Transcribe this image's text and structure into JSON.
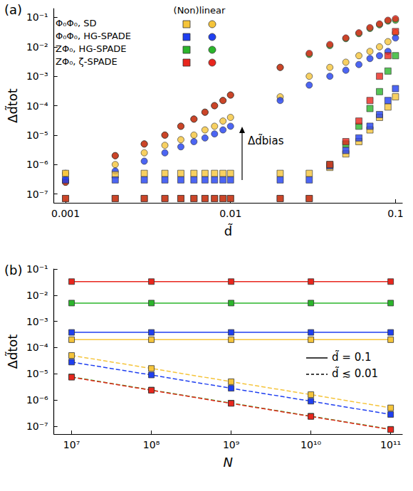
{
  "chart_data": [
    {
      "type": "scatter",
      "panel_label": "(a)",
      "x_label": "d̃",
      "y_label": "Δd̃tot",
      "log": true,
      "grid": false,
      "legend": "upper left",
      "legend_title": "(Non)linear",
      "annotation": "Δd̃bias",
      "xlim": [
        0.00085,
        0.11
      ],
      "ylim": [
        5e-08,
        0.2
      ],
      "xticks": [
        0.001,
        0.01,
        0.1
      ],
      "yticks": [
        {
          "value": 1e-07,
          "label": "10⁻⁷"
        },
        {
          "value": 1e-06,
          "label": "10⁻⁶"
        },
        {
          "value": 1e-05,
          "label": "10⁻⁵"
        },
        {
          "value": 0.0001,
          "label": "10⁻⁴"
        },
        {
          "value": 0.001,
          "label": "10⁻³"
        },
        {
          "value": 0.01,
          "label": "10⁻²"
        },
        {
          "value": 0.1,
          "label": "10⁻¹"
        }
      ],
      "x": [
        0.001,
        0.002,
        0.003,
        0.004,
        0.005,
        0.006,
        0.007,
        0.008,
        0.009,
        0.01,
        0.02,
        0.03,
        0.04,
        0.05,
        0.06,
        0.07,
        0.08,
        0.09,
        0.1
      ],
      "series": [
        {
          "name": "Φ₀Φ₀, SD",
          "marker": "circle",
          "color": "#f5c43a",
          "values": [
            5e-07,
            1e-06,
            2.5e-06,
            4.5e-06,
            7e-06,
            1e-05,
            1.5e-05,
            2e-05,
            3e-05,
            4e-05,
            0.0002,
            0.001,
            0.002,
            0.003,
            0.005,
            0.007,
            0.01,
            0.015,
            0.03
          ]
        },
        {
          "name": "Φ₀Φ₀, HG-SPADE",
          "marker": "circle",
          "color": "#1f3ff0",
          "values": [
            3e-07,
            6e-07,
            1.3e-06,
            2.5e-06,
            4e-06,
            6e-06,
            8e-06,
            1.1e-05,
            1.5e-05,
            2e-05,
            0.00015,
            0.0005,
            0.001,
            0.0016,
            0.0025,
            0.004,
            0.005,
            0.007,
            0.02
          ]
        },
        {
          "name": "ZΦ₀, HG-SPADE",
          "marker": "circle",
          "color": "#2bb52b",
          "values": [
            2.5e-07,
            2e-06,
            5e-06,
            1e-05,
            2e-05,
            3.5e-05,
            6e-05,
            0.0001,
            0.00015,
            0.00023,
            0.002,
            0.0055,
            0.011,
            0.019,
            0.028,
            0.042,
            0.056,
            0.075,
            0.08
          ]
        },
        {
          "name": "ZΦ₀, ζ-SPADE",
          "marker": "circle",
          "color": "#e8261d",
          "values": [
            2.5e-07,
            2e-06,
            5e-06,
            1e-05,
            2e-05,
            3.5e-05,
            6e-05,
            0.0001,
            0.00015,
            0.00023,
            0.002,
            0.006,
            0.012,
            0.02,
            0.03,
            0.045,
            0.06,
            0.08,
            0.09
          ]
        },
        {
          "name": "Φ₀Φ₀, SD",
          "marker": "square",
          "color": "#f5c43a",
          "values": [
            5e-07,
            4.5e-07,
            5e-07,
            5e-07,
            5e-07,
            5e-07,
            5e-07,
            5e-07,
            5e-07,
            5e-07,
            5e-07,
            5e-07,
            8e-07,
            2.3e-06,
            6e-06,
            1.5e-05,
            4e-05,
            9e-05,
            0.0002
          ]
        },
        {
          "name": "Φ₀Φ₀, HG-SPADE",
          "marker": "square",
          "color": "#1f3ff0",
          "values": [
            3e-07,
            3e-07,
            3e-07,
            3e-07,
            3e-07,
            3e-07,
            3e-07,
            3e-07,
            3e-07,
            3e-07,
            3e-07,
            3e-07,
            9e-07,
            3e-06,
            8e-06,
            2e-05,
            5e-05,
            0.00015,
            0.00038
          ]
        },
        {
          "name": "ZΦ₀, HG-SPADE",
          "marker": "square",
          "color": "#2bb52b",
          "values": [
            7e-08,
            7e-08,
            7e-08,
            7e-08,
            7e-08,
            7e-08,
            7e-08,
            7e-08,
            7e-08,
            7e-08,
            7e-08,
            7e-08,
            1e-06,
            5e-06,
            2e-05,
            8e-05,
            0.0003,
            0.0015,
            0.005
          ]
        },
        {
          "name": "ZΦ₀, ζ-SPADE",
          "marker": "square",
          "color": "#e8261d",
          "values": [
            7e-08,
            7e-08,
            7e-08,
            7e-08,
            7e-08,
            7e-08,
            7e-08,
            7e-08,
            7e-08,
            7e-08,
            7e-08,
            7e-08,
            1e-06,
            6e-06,
            3e-05,
            0.00015,
            0.001,
            0.005,
            0.033
          ]
        }
      ]
    },
    {
      "type": "line",
      "panel_label": "(b)",
      "x_label": "N",
      "y_label": "Δd̃tot",
      "log": true,
      "grid": false,
      "legend": "right",
      "marker": "square",
      "xlim": [
        6000000.0,
        140000000000.0
      ],
      "ylim": [
        5e-08,
        0.1
      ],
      "xticks": [
        {
          "value": 10000000.0,
          "label": "10⁷"
        },
        {
          "value": 100000000.0,
          "label": "10⁸"
        },
        {
          "value": 1000000000.0,
          "label": "10⁹"
        },
        {
          "value": 10000000000.0,
          "label": "10¹⁰"
        },
        {
          "value": 100000000000.0,
          "label": "10¹¹"
        }
      ],
      "yticks": [
        {
          "value": 1e-07,
          "label": "10⁻⁷"
        },
        {
          "value": 1e-06,
          "label": "10⁻⁶"
        },
        {
          "value": 1e-05,
          "label": "10⁻⁵"
        },
        {
          "value": 0.0001,
          "label": "10⁻⁴"
        },
        {
          "value": 0.001,
          "label": "10⁻³"
        },
        {
          "value": 0.01,
          "label": "10⁻²"
        },
        {
          "value": 0.1,
          "label": "10⁻¹"
        }
      ],
      "x": [
        10000000.0,
        100000000.0,
        1000000000.0,
        10000000000.0,
        100000000000.0
      ],
      "series": [
        {
          "name": "d̃ = 0.1",
          "line_style": "solid",
          "color": "#e8261d",
          "values": [
            0.033,
            0.033,
            0.033,
            0.033,
            0.033
          ]
        },
        {
          "name": "d̃ = 0.1",
          "line_style": "solid",
          "color": "#2bb52b",
          "values": [
            0.005,
            0.005,
            0.005,
            0.005,
            0.005
          ]
        },
        {
          "name": "d̃ = 0.1",
          "line_style": "solid",
          "color": "#1f3ff0",
          "values": [
            0.00038,
            0.00038,
            0.00038,
            0.00038,
            0.00038
          ]
        },
        {
          "name": "d̃ = 0.1",
          "line_style": "solid",
          "color": "#f5c43a",
          "values": [
            0.0002,
            0.0002,
            0.0002,
            0.0002,
            0.0002
          ]
        },
        {
          "name": "d̃ ≲ 0.01",
          "line_style": "dashed",
          "color": "#f5c43a",
          "values": [
            5e-05,
            1.6e-05,
            5e-06,
            1.6e-06,
            5e-07
          ]
        },
        {
          "name": "d̃ ≲ 0.01",
          "line_style": "dashed",
          "color": "#1f3ff0",
          "values": [
            2.8e-05,
            9e-06,
            2.8e-06,
            9e-07,
            2.8e-07
          ]
        },
        {
          "name": "d̃ ≲ 0.01",
          "line_style": "dashed",
          "color": "#2bb52b",
          "values": [
            7.6e-06,
            2.4e-06,
            7.6e-07,
            2.4e-07,
            7.6e-08
          ]
        },
        {
          "name": "d̃ ≲ 0.01",
          "line_style": "dashed",
          "color": "#e8261d",
          "values": [
            7.4e-06,
            2.35e-06,
            7.4e-07,
            2.35e-07,
            7.4e-08
          ]
        }
      ]
    }
  ]
}
